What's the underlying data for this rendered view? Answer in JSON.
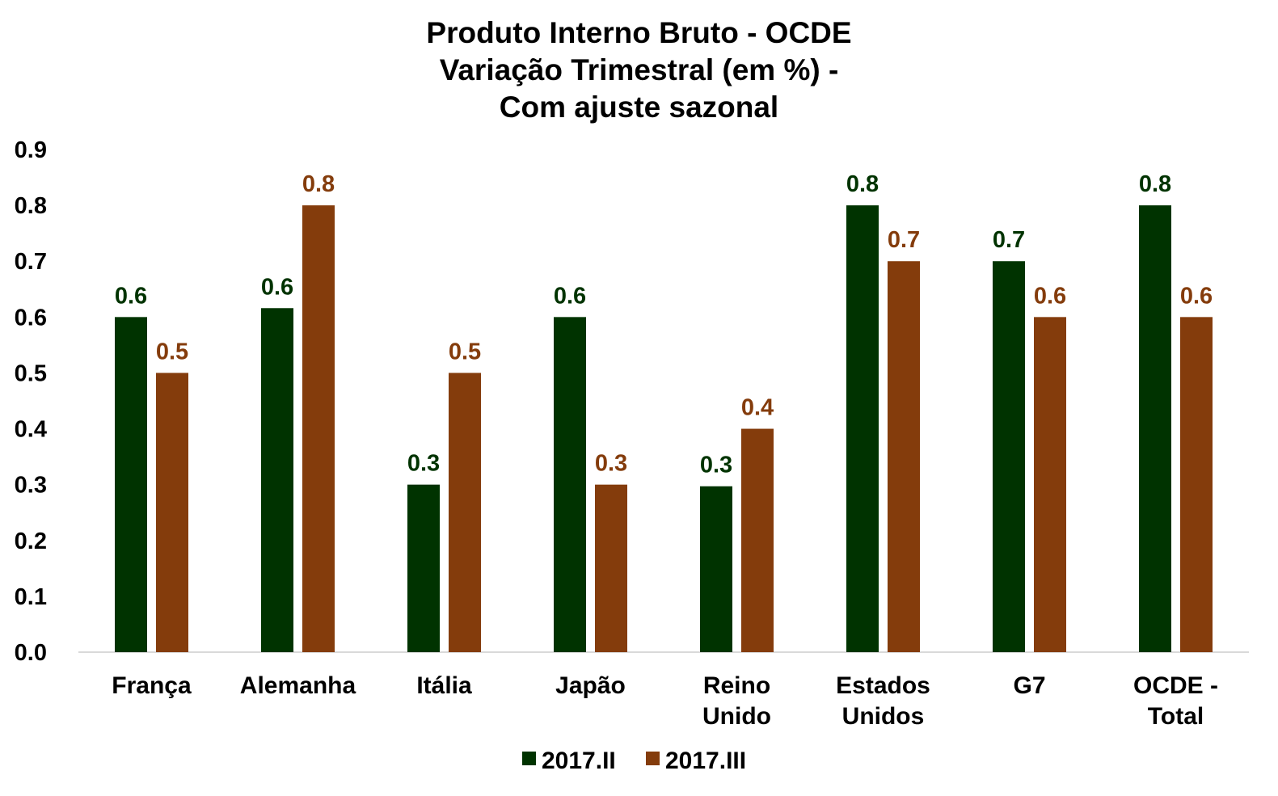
{
  "chart_data": {
    "type": "bar",
    "title_lines": [
      "Produto Interno Bruto - OCDE",
      "Variação Trimestral (em %) -",
      "Com ajuste sazonal"
    ],
    "categories": [
      [
        "França"
      ],
      [
        "Alemanha"
      ],
      [
        "Itália"
      ],
      [
        "Japão"
      ],
      [
        "Reino",
        "Unido"
      ],
      [
        "Estados",
        "Unidos"
      ],
      [
        "G7"
      ],
      [
        "OCDE -",
        "Total"
      ]
    ],
    "series": [
      {
        "name": "2017.II",
        "color": "#003300",
        "values": [
          0.6,
          0.616,
          0.3,
          0.6,
          0.297,
          0.8,
          0.7,
          0.8
        ],
        "labels": [
          "0.6",
          "0.6",
          "0.3",
          "0.6",
          "0.3",
          "0.8",
          "0.7",
          "0.8"
        ]
      },
      {
        "name": "2017.III",
        "color": "#843C0C",
        "values": [
          0.5,
          0.8,
          0.5,
          0.3,
          0.4,
          0.7,
          0.6,
          0.6
        ],
        "labels": [
          "0.5",
          "0.8",
          "0.5",
          "0.3",
          "0.4",
          "0.7",
          "0.6",
          "0.6"
        ]
      }
    ],
    "ylim": [
      0,
      0.9
    ],
    "yticks": [
      "0.0",
      "0.1",
      "0.2",
      "0.3",
      "0.4",
      "0.5",
      "0.6",
      "0.7",
      "0.8",
      "0.9"
    ],
    "grid": false,
    "legend_position": "bottom",
    "axis_color": "#d9d9d9"
  }
}
